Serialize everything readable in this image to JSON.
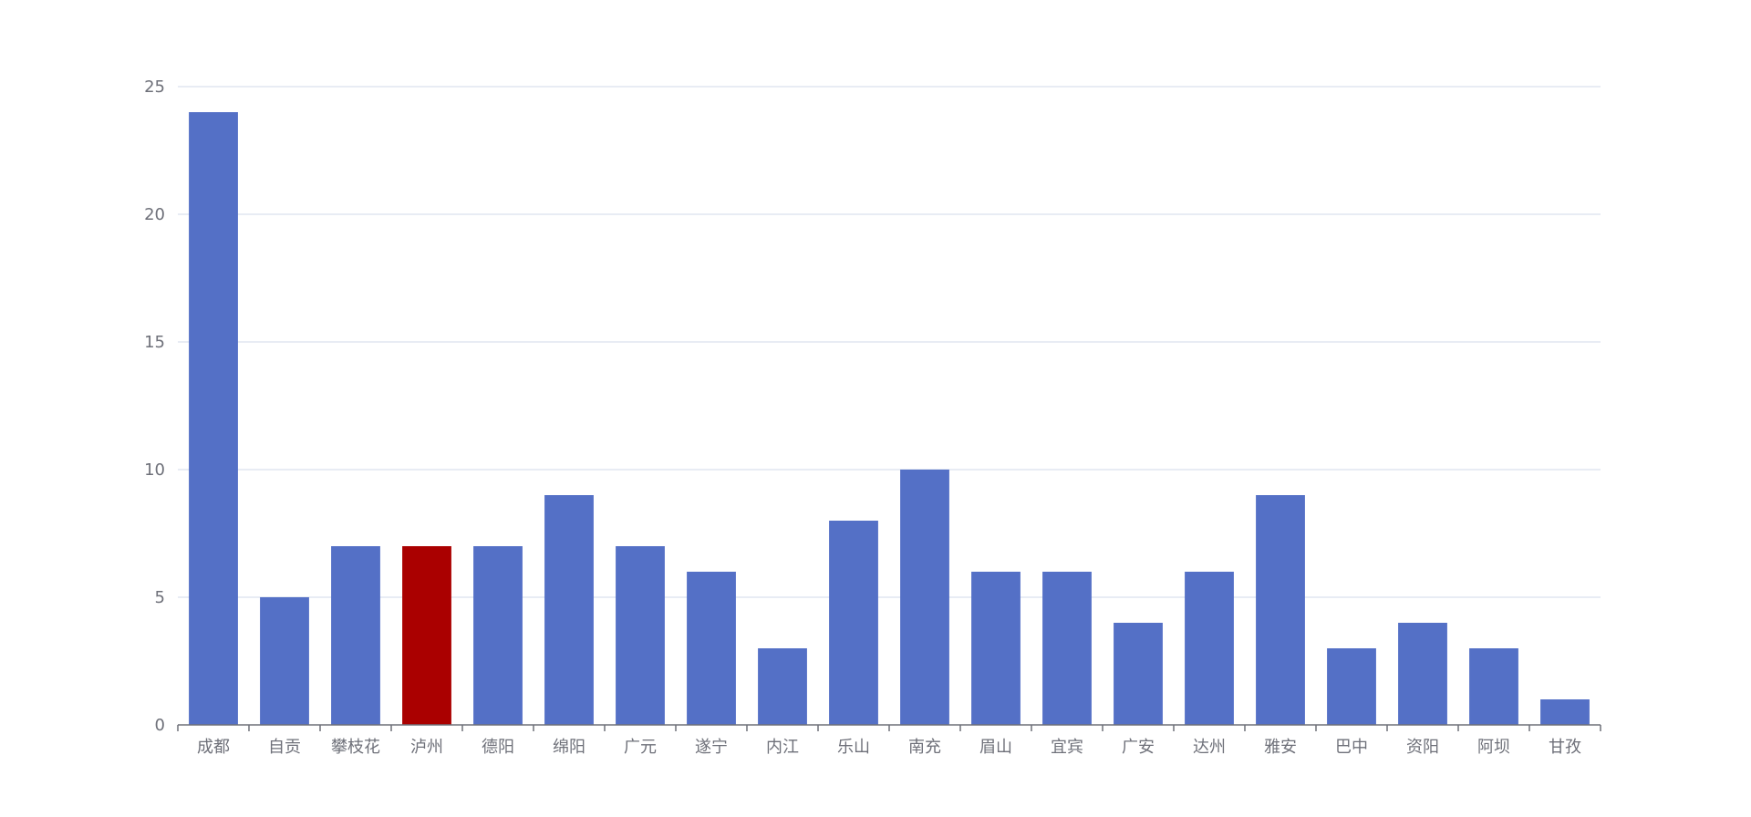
{
  "chart_data": {
    "type": "bar",
    "title": "",
    "xlabel": "",
    "ylabel": "",
    "ylim": [
      0,
      25
    ],
    "yticks": [
      0,
      5,
      10,
      15,
      20,
      25
    ],
    "grid": true,
    "categories": [
      "成都",
      "自贡",
      "攀枝花",
      "泸州",
      "德阳",
      "绵阳",
      "广元",
      "遂宁",
      "内江",
      "乐山",
      "南充",
      "眉山",
      "宜宾",
      "广安",
      "达州",
      "雅安",
      "巴中",
      "资阳",
      "阿坝",
      "甘孜"
    ],
    "series": [
      {
        "values": [
          24,
          5,
          7,
          7,
          7,
          9,
          7,
          6,
          3,
          8,
          10,
          6,
          6,
          4,
          6,
          9,
          3,
          4,
          3,
          1
        ]
      }
    ],
    "highlight_category": "泸州",
    "colors": {
      "bar": "#5470c6",
      "highlight": "#aa0000",
      "grid": "#e0e6f1",
      "axis": "#6e7079",
      "label": "#6e7079"
    }
  }
}
